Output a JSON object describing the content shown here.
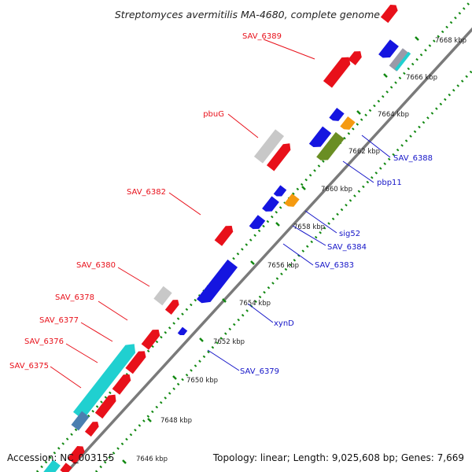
{
  "title": "Streptomyces avermitilis MA-4680, complete genome",
  "footer": {
    "accession": "Accession: NC_003155",
    "summary": "Topology: linear; Length: 9,025,608 bp; Genes: 7,669"
  },
  "colors": {
    "red": "#e8101a",
    "blue": "#1515e0",
    "gray": "#c8c8c8",
    "cyan": "#20d0d0",
    "orange": "#f59a10",
    "olive": "#6a8e23",
    "steel": "#4a7fb0",
    "axis": "#888888",
    "tick": "#118811",
    "label_red": "#e8101a",
    "label_blue": "#1515c8"
  },
  "ticks": [
    "7646 kbp",
    "7648 kbp",
    "7650 kbp",
    "7652 kbp",
    "7654 kbp",
    "7656 kbp",
    "7658 kbp",
    "7660 kbp",
    "7662 kbp",
    "7664 kbp",
    "7666 kbp",
    "7668 kbp"
  ],
  "labels_top": [
    "SAV_6375",
    "SAV_6376",
    "SAV_6377",
    "SAV_6378",
    "SAV_6380",
    "SAV_6382",
    "pbuG",
    "SAV_6389"
  ],
  "labels_bottom": [
    "SAV_6379",
    "xynD",
    "SAV_6383",
    "SAV_6384",
    "sig52",
    "pbp11",
    "SAV_6388"
  ]
}
